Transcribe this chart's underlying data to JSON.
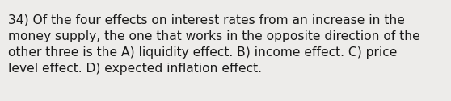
{
  "text": "34) Of the four effects on interest rates from an increase in the\nmoney supply, the one that works in the opposite direction of the\nother three is the A) liquidity effect. B) income effect. C) price\nlevel effect. D) expected inflation effect.",
  "background_color": "#edecea",
  "text_color": "#1a1a1a",
  "font_size": 11.2,
  "fig_width": 5.58,
  "fig_height": 1.26,
  "dpi": 100
}
